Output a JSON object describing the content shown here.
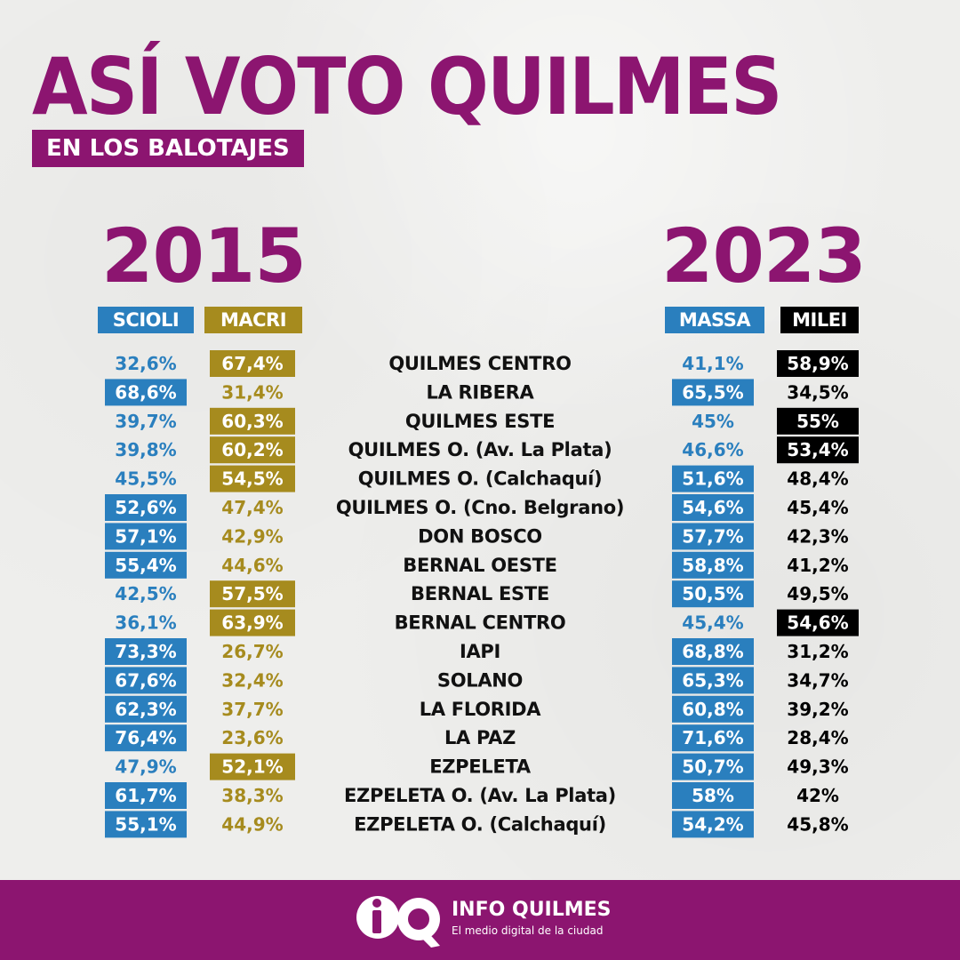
{
  "header": {
    "title": "ASÍ VOTO QUILMES",
    "subtitle": "EN LOS BALOTAJES"
  },
  "years": {
    "left": "2015",
    "right": "2023"
  },
  "colors": {
    "brand": "#8c1570",
    "scioli": "#2a7fbe",
    "macri": "#a68b1e",
    "massa": "#2a7fbe",
    "milei": "#000000",
    "winner_text": "#ffffff"
  },
  "chart_data": {
    "type": "table",
    "categories": [
      "QUILMES CENTRO",
      "LA RIBERA",
      "QUILMES ESTE",
      "QUILMES O. (Av. La Plata)",
      "QUILMES O. (Calchaquí)",
      "QUILMES O. (Cno. Belgrano)",
      "DON BOSCO",
      "BERNAL OESTE",
      "BERNAL ESTE",
      "BERNAL CENTRO",
      "IAPI",
      "SOLANO",
      "LA FLORIDA",
      "LA PAZ",
      "EZPELETA",
      "EZPELETA O. (Av. La Plata)",
      "EZPELETA O. (Calchaquí)"
    ],
    "series": [
      {
        "name": "SCIOLI",
        "year": "2015",
        "values": [
          32.6,
          68.6,
          39.7,
          39.8,
          45.5,
          52.6,
          57.1,
          55.4,
          42.5,
          36.1,
          73.3,
          67.6,
          62.3,
          76.4,
          47.9,
          61.7,
          55.1
        ],
        "labels": [
          "32,6%",
          "68,6%",
          "39,7%",
          "39,8%",
          "45,5%",
          "52,6%",
          "57,1%",
          "55,4%",
          "42,5%",
          "36,1%",
          "73,3%",
          "67,6%",
          "62,3%",
          "76,4%",
          "47,9%",
          "61,7%",
          "55,1%"
        ]
      },
      {
        "name": "MACRI",
        "year": "2015",
        "values": [
          67.4,
          31.4,
          60.3,
          60.2,
          54.5,
          47.4,
          42.9,
          44.6,
          57.5,
          63.9,
          26.7,
          32.4,
          37.7,
          23.6,
          52.1,
          38.3,
          44.9
        ],
        "labels": [
          "67,4%",
          "31,4%",
          "60,3%",
          "60,2%",
          "54,5%",
          "47,4%",
          "42,9%",
          "44,6%",
          "57,5%",
          "63,9%",
          "26,7%",
          "32,4%",
          "37,7%",
          "23,6%",
          "52,1%",
          "38,3%",
          "44,9%"
        ]
      },
      {
        "name": "MASSA",
        "year": "2023",
        "values": [
          41.1,
          65.5,
          45,
          46.6,
          51.6,
          54.6,
          57.7,
          58.8,
          50.5,
          45.4,
          68.8,
          65.3,
          60.8,
          71.6,
          50.7,
          58,
          54.2
        ],
        "labels": [
          "41,1%",
          "65,5%",
          "45%",
          "46,6%",
          "51,6%",
          "54,6%",
          "57,7%",
          "58,8%",
          "50,5%",
          "45,4%",
          "68,8%",
          "65,3%",
          "60,8%",
          "71,6%",
          "50,7%",
          "58%",
          "54,2%"
        ]
      },
      {
        "name": "MILEI",
        "year": "2023",
        "values": [
          58.9,
          34.5,
          55,
          53.4,
          48.4,
          45.4,
          42.3,
          41.2,
          49.5,
          54.6,
          31.2,
          34.7,
          39.2,
          28.4,
          49.3,
          42,
          45.8
        ],
        "labels": [
          "58,9%",
          "34,5%",
          "55%",
          "53,4%",
          "48,4%",
          "45,4%",
          "42,3%",
          "41,2%",
          "49,5%",
          "54,6%",
          "31,2%",
          "34,7%",
          "39,2%",
          "28,4%",
          "49,3%",
          "42%",
          "45,8%"
        ]
      }
    ]
  },
  "footer": {
    "logo_icon": "iq-logo-icon",
    "brand_name": "INFO QUILMES",
    "tagline": "El medio digital de la ciudad"
  }
}
